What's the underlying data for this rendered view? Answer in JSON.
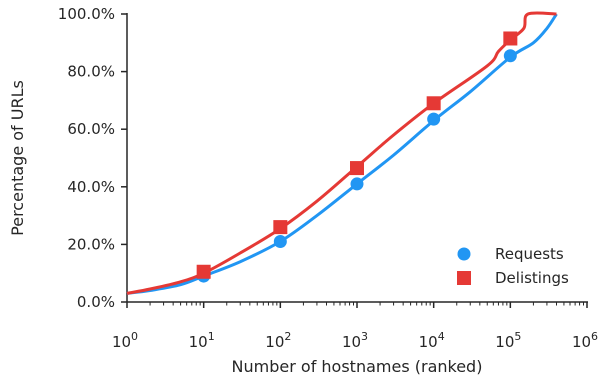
{
  "chart_data": {
    "type": "line",
    "xlabel": "Number of hostnames (ranked)",
    "ylabel": "Percentage of URLs",
    "x_scale": "log10",
    "xlim": [
      1,
      1000000
    ],
    "ylim": [
      0,
      100
    ],
    "x_ticks": [
      {
        "value": 1,
        "base": "10",
        "exp": "0"
      },
      {
        "value": 10,
        "base": "10",
        "exp": "1"
      },
      {
        "value": 100,
        "base": "10",
        "exp": "2"
      },
      {
        "value": 1000,
        "base": "10",
        "exp": "3"
      },
      {
        "value": 10000,
        "base": "10",
        "exp": "4"
      },
      {
        "value": 100000,
        "base": "10",
        "exp": "5"
      },
      {
        "value": 1000000,
        "base": "10",
        "exp": "6"
      }
    ],
    "y_ticks": [
      {
        "value": 0,
        "label": "0.0%"
      },
      {
        "value": 20,
        "label": "20.0%"
      },
      {
        "value": 40,
        "label": "40.0%"
      },
      {
        "value": 60,
        "label": "60.0%"
      },
      {
        "value": 80,
        "label": "80.0%"
      },
      {
        "value": 100,
        "label": "100.0%"
      }
    ],
    "grid": false,
    "legend_position": "bottom-right",
    "series": [
      {
        "name": "Requests",
        "color": "#2196F3",
        "marker": "circle",
        "curve": [
          [
            1,
            3
          ],
          [
            2,
            4
          ],
          [
            5,
            6
          ],
          [
            10,
            9
          ],
          [
            30,
            14
          ],
          [
            100,
            21
          ],
          [
            300,
            30
          ],
          [
            1000,
            41
          ],
          [
            3000,
            51
          ],
          [
            10000,
            63
          ],
          [
            30000,
            73
          ],
          [
            100000,
            85
          ],
          [
            200000,
            90
          ],
          [
            300000,
            95
          ],
          [
            400000,
            100
          ]
        ],
        "markers": [
          [
            10,
            9
          ],
          [
            100,
            21
          ],
          [
            1000,
            41
          ],
          [
            10000,
            63.5
          ],
          [
            100000,
            85.5
          ]
        ]
      },
      {
        "name": "Delistings",
        "color": "#E53935",
        "marker": "square",
        "curve": [
          [
            1,
            3
          ],
          [
            2,
            4.5
          ],
          [
            5,
            7
          ],
          [
            10,
            10
          ],
          [
            30,
            17
          ],
          [
            100,
            25.5
          ],
          [
            300,
            35
          ],
          [
            1000,
            47
          ],
          [
            3000,
            58
          ],
          [
            10000,
            69
          ],
          [
            50000,
            82
          ],
          [
            70000,
            87
          ],
          [
            100000,
            91
          ],
          [
            150000,
            95
          ],
          [
            170000,
            100
          ],
          [
            400000,
            100
          ]
        ],
        "markers": [
          [
            10,
            10.5
          ],
          [
            100,
            26
          ],
          [
            1000,
            46.5
          ],
          [
            10000,
            69
          ],
          [
            100000,
            91.5
          ]
        ]
      }
    ]
  }
}
